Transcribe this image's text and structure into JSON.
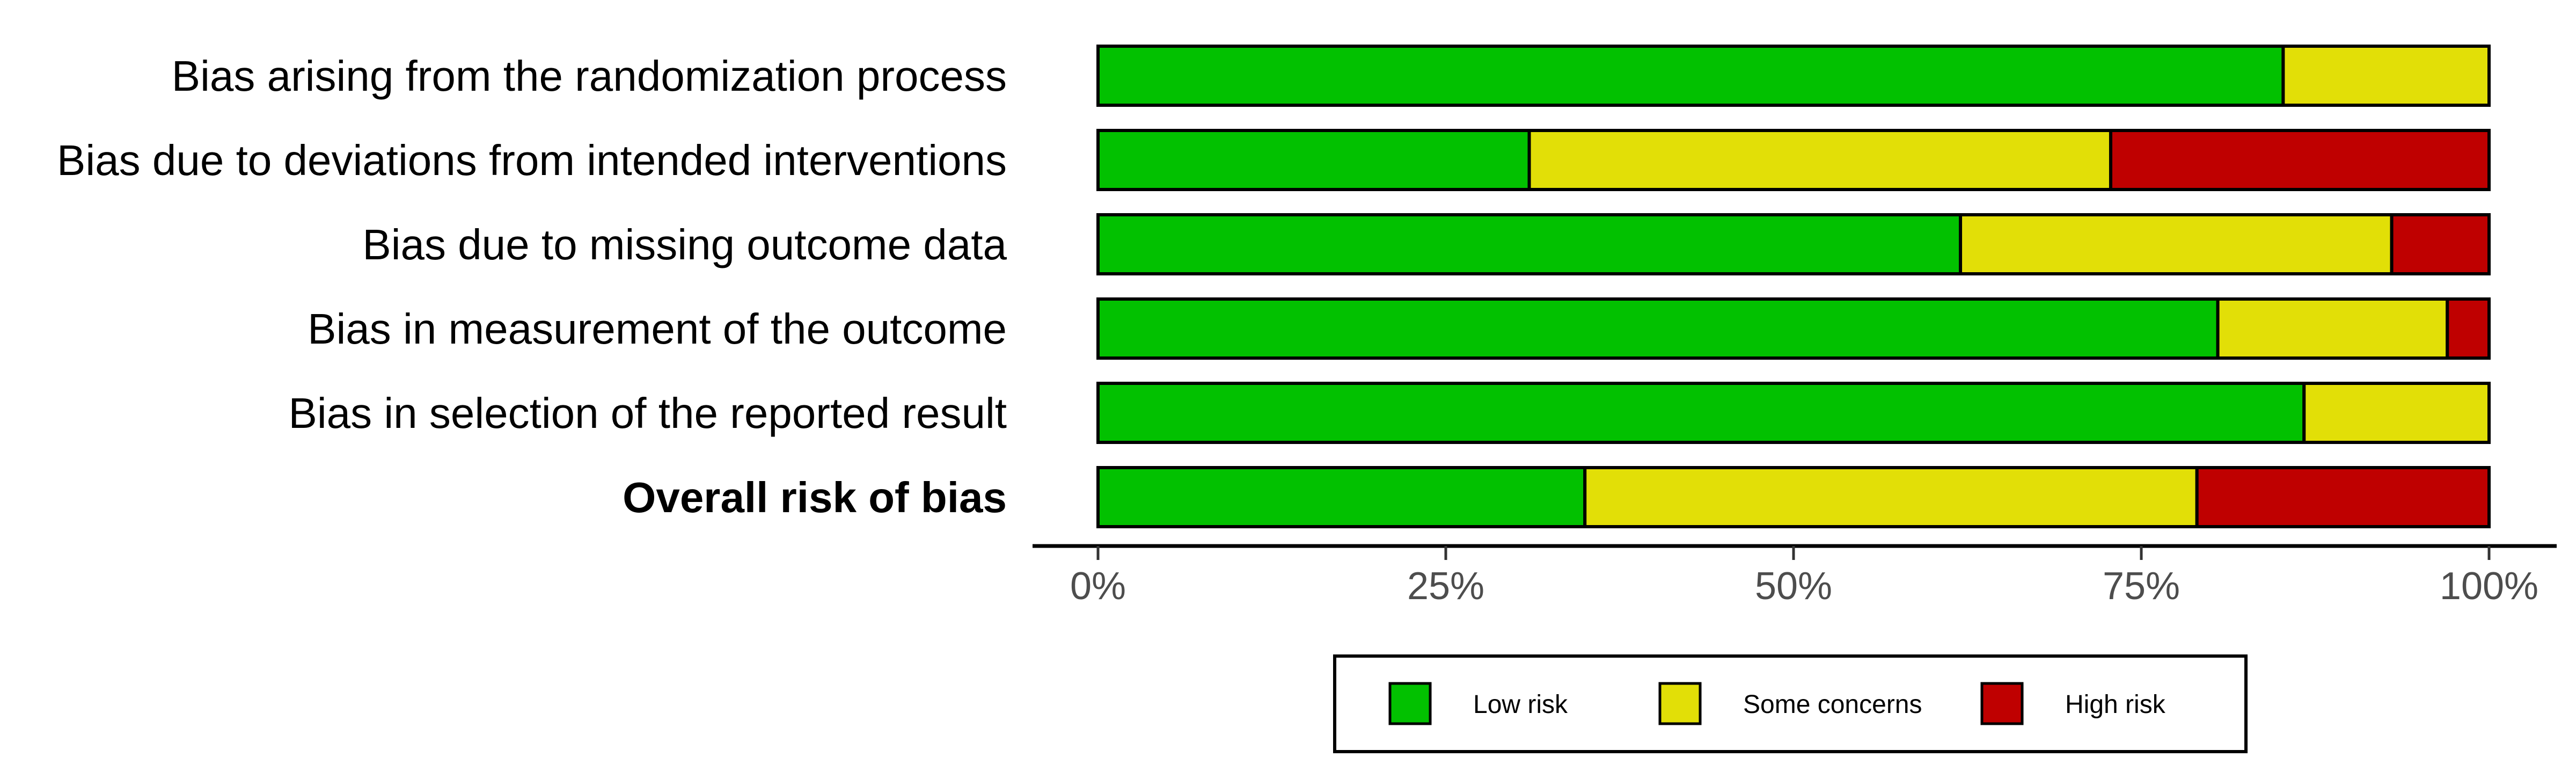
{
  "chart_data": {
    "type": "bar",
    "orientation": "horizontal",
    "stacked": true,
    "categories": [
      "Bias arising from the randomization process",
      "Bias due to deviations from intended interventions",
      "Bias due to missing outcome data",
      "Bias in measurement of the outcome",
      "Bias in selection of the reported result",
      "Overall risk of bias"
    ],
    "bold_categories": [
      "Overall risk of bias"
    ],
    "series": [
      {
        "name": "Low risk",
        "color": "#02c100",
        "values": [
          85.2,
          31.0,
          62.0,
          80.5,
          86.7,
          35.0
        ]
      },
      {
        "name": "Some concerns",
        "color": "#e2df07",
        "values": [
          14.8,
          41.8,
          31.0,
          16.5,
          13.3,
          44.0
        ]
      },
      {
        "name": "High risk",
        "color": "#bf0000",
        "values": [
          0.0,
          27.2,
          7.0,
          3.0,
          0.0,
          21.0
        ]
      }
    ],
    "xlim": [
      0,
      100
    ],
    "xticks": [
      "0%",
      "25%",
      "50%",
      "75%",
      "100%"
    ],
    "title": "",
    "xlabel": "",
    "ylabel": "",
    "legend_position": "bottom",
    "grid": false
  }
}
